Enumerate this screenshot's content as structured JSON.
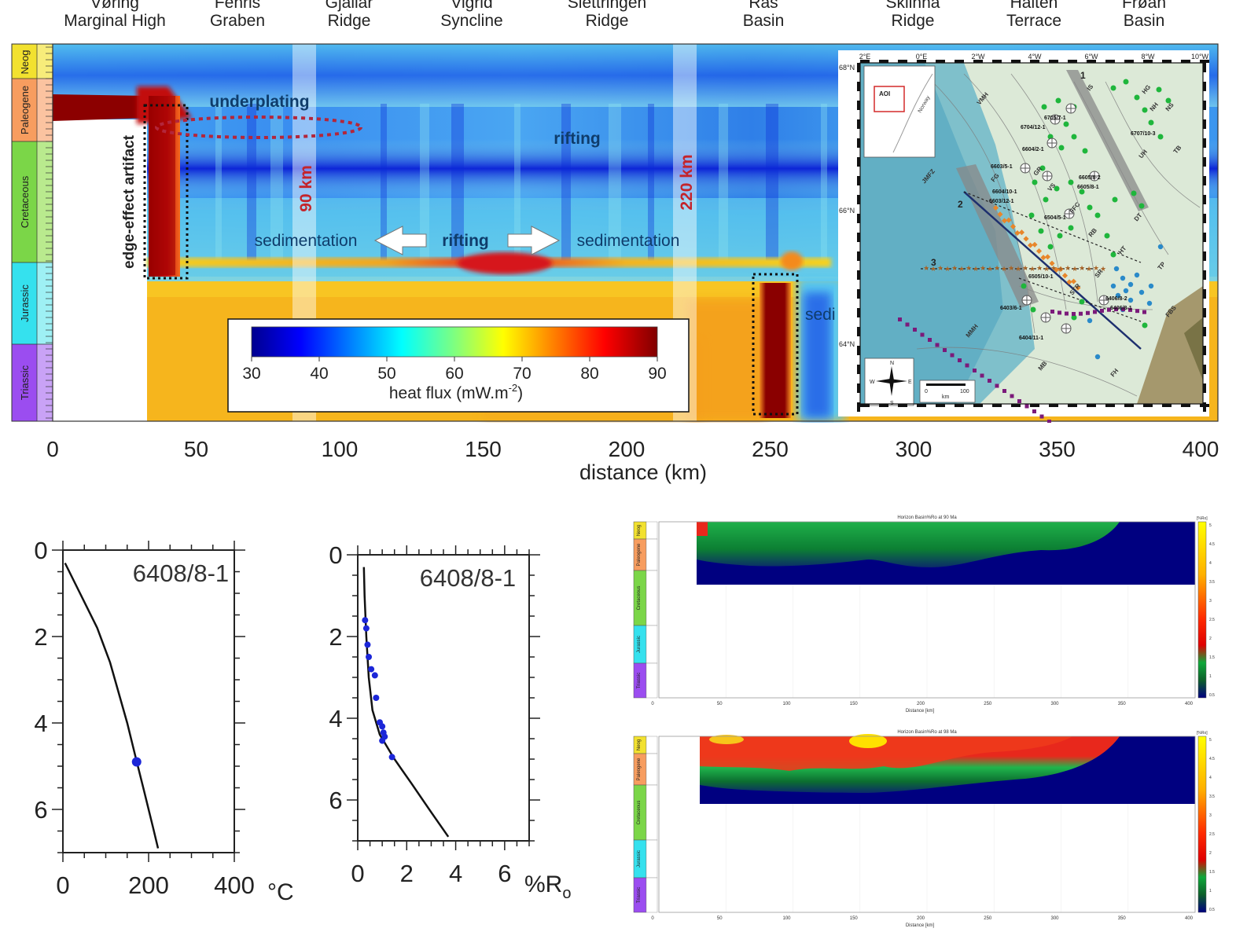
{
  "chart_data": [
    {
      "type": "heatmap",
      "title": "",
      "xlabel": "distance (km)",
      "xlim": [
        0,
        400
      ],
      "x_ticks": [
        "0",
        "50",
        "100",
        "150",
        "200",
        "250",
        "300",
        "350",
        "400"
      ],
      "top_labels": [
        {
          "line1": "Vøring",
          "line2": "Marginal High"
        },
        {
          "line1": "Fenris",
          "line2": "Graben"
        },
        {
          "line1": "Gjallar",
          "line2": "Ridge"
        },
        {
          "line1": "Vigrid",
          "line2": "Syncline"
        },
        {
          "line1": "Slettringen",
          "line2": "Ridge"
        },
        {
          "line1": "Rås",
          "line2": "Basin"
        },
        {
          "line1": "Sklinna",
          "line2": "Ridge"
        },
        {
          "line1": "Halten",
          "line2": "Terrace"
        },
        {
          "line1": "Frøan",
          "line2": "Basin"
        }
      ],
      "strat_column": [
        "Neog",
        "Paleogene",
        "Cretaceous",
        "Jurassic",
        "Triassic"
      ],
      "annotations": {
        "underplating": "underplating",
        "rifting_top": "rifting",
        "rifting_mid": "rifting",
        "sedimentation_left": "sedimentation",
        "sedimentation_right": "sedimentation",
        "sedi": "sedi",
        "edge_effect": "edge-effect artifact",
        "marker_90": "90 km",
        "marker_220": "220 km"
      },
      "colorbar": {
        "ticks": [
          "30",
          "40",
          "50",
          "60",
          "70",
          "80",
          "90"
        ],
        "range": [
          30,
          90
        ],
        "label_main": "heat flux (mW.m",
        "label_sup": "-2",
        "label_end": ")"
      }
    },
    {
      "type": "line",
      "well": "6408/8-1",
      "xlabel": "°C",
      "xlim": [
        0,
        400
      ],
      "ylim": [
        0,
        7
      ],
      "x_ticks": [
        "0",
        "200",
        "400"
      ],
      "y_ticks": [
        "0",
        "2",
        "4",
        "6"
      ],
      "model_curve": [
        [
          5,
          0.3
        ],
        [
          40,
          1.0
        ],
        [
          80,
          1.8
        ],
        [
          110,
          2.6
        ],
        [
          130,
          3.3
        ],
        [
          150,
          4.0
        ],
        [
          170,
          4.8
        ],
        [
          190,
          5.6
        ],
        [
          210,
          6.4
        ],
        [
          222,
          6.9
        ]
      ],
      "measured_points": [
        [
          172,
          4.9
        ]
      ]
    },
    {
      "type": "line",
      "well": "6408/8-1",
      "xlabel": "%R",
      "xlabel_sub": "o",
      "xlim": [
        0,
        7
      ],
      "ylim": [
        0,
        7
      ],
      "x_ticks": [
        "0",
        "2",
        "4",
        "6"
      ],
      "y_ticks": [
        "0",
        "2",
        "4",
        "6"
      ],
      "model_curve": [
        [
          0.25,
          0.3
        ],
        [
          0.28,
          1.0
        ],
        [
          0.35,
          2.0
        ],
        [
          0.45,
          3.0
        ],
        [
          0.6,
          3.8
        ],
        [
          0.9,
          4.4
        ],
        [
          1.5,
          5.0
        ],
        [
          2.2,
          5.6
        ],
        [
          3.0,
          6.3
        ],
        [
          3.7,
          6.9
        ]
      ],
      "measured_points": [
        [
          0.3,
          1.6
        ],
        [
          0.35,
          1.8
        ],
        [
          0.4,
          2.2
        ],
        [
          0.45,
          2.5
        ],
        [
          0.55,
          2.8
        ],
        [
          0.7,
          2.95
        ],
        [
          0.75,
          3.5
        ],
        [
          0.9,
          4.1
        ],
        [
          1.0,
          4.2
        ],
        [
          1.05,
          4.35
        ],
        [
          1.1,
          4.45
        ],
        [
          1.0,
          4.55
        ],
        [
          1.4,
          4.95
        ]
      ]
    },
    {
      "type": "heatmap",
      "title": "Horizon Basin%Ro at 90 Ma",
      "xlabel": "Distance [km]",
      "colorbar_unit": "[%Ro]",
      "x_ticks": [
        "0",
        "50",
        "100",
        "150",
        "200",
        "250",
        "300",
        "350",
        "400"
      ],
      "colorbar_ticks": [
        "5",
        "4.5",
        "4",
        "3.5",
        "3",
        "2.5",
        "2",
        "1.5",
        "1",
        "0.5"
      ],
      "strat_column": [
        "Neog",
        "Paleogene",
        "Cretaceous",
        "Jurassic",
        "Triassic"
      ]
    },
    {
      "type": "heatmap",
      "title": "Horizon Basin%Ro at 98 Ma",
      "xlabel": "Distance [km]",
      "colorbar_unit": "[%Ro]",
      "x_ticks": [
        "0",
        "50",
        "100",
        "150",
        "200",
        "250",
        "300",
        "350",
        "400"
      ],
      "colorbar_ticks": [
        "5",
        "4.5",
        "4",
        "3.5",
        "3",
        "2.5",
        "2",
        "1.5",
        "1",
        "0.5"
      ],
      "strat_column": [
        "Neog",
        "Paleogene",
        "Cretaceous",
        "Jurassic",
        "Triassic"
      ]
    }
  ],
  "inset_map": {
    "lon_labels": [
      "2°E",
      "0°E",
      "2°W",
      "4°W",
      "6°W",
      "8°W",
      "10°W"
    ],
    "lat_labels": [
      "68°N",
      "66°N",
      "64°N"
    ],
    "aoi": "AOI",
    "country": "Norway",
    "structures": [
      "VMH",
      "JMFZ",
      "FG",
      "GR",
      "VS",
      "FFC",
      "RB",
      "HG",
      "NH",
      "NS",
      "UH",
      "TB",
      "DT",
      "HT",
      "SR",
      "STR",
      "TP",
      "FBS",
      "MMH",
      "MB",
      "FH",
      "IS"
    ],
    "wells": [
      "6705/7-1",
      "6704/12-1",
      "6604/2-1",
      "6603/5-1",
      "6604/10-1",
      "6605/8-2",
      "6605/8-1",
      "6603/12-1",
      "6504/5-1",
      "6505/10-1",
      "6403/6-1",
      "6404/11-1",
      "6406/8-2",
      "6406/8-1",
      "6707/10-3"
    ],
    "profiles": [
      "1",
      "2",
      "3"
    ],
    "compass": [
      "N",
      "S",
      "E",
      "W"
    ],
    "scale": [
      "0",
      "km",
      "100"
    ]
  }
}
